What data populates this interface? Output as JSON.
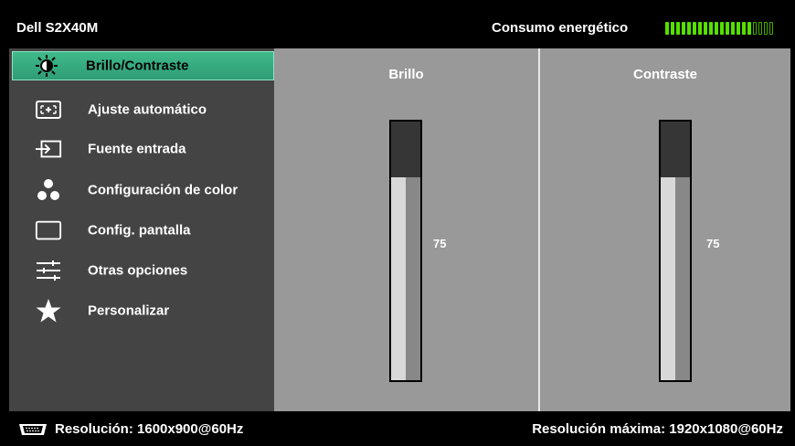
{
  "header": {
    "model": "Dell S2X40M",
    "energy_label": "Consumo energético",
    "energy_level": 0.8,
    "energy_segments_on": 16,
    "energy_segments_total": 20,
    "energy_color": "#55e000"
  },
  "menu": {
    "items": [
      {
        "label": "Brillo/Contraste",
        "icon": "brightness-icon",
        "active": true
      },
      {
        "label": "Ajuste  automático",
        "icon": "auto-adjust-icon"
      },
      {
        "label": "Fuente entrada",
        "icon": "input-source-icon"
      },
      {
        "label": "Configuración de color",
        "icon": "color-settings-icon"
      },
      {
        "label": "Config. pantalla",
        "icon": "display-settings-icon"
      },
      {
        "label": "Otras opciones",
        "icon": "other-settings-icon"
      },
      {
        "label": "Personalizar",
        "icon": "star-icon"
      }
    ],
    "active_color": "#3fb98a"
  },
  "brightness": {
    "title": "Brillo",
    "value": "75",
    "level": 0.75
  },
  "contrast": {
    "title": "Contraste",
    "value": "75",
    "level": 0.75
  },
  "footer": {
    "resolution": "Resolución: 1600x900@60Hz",
    "max_resolution": "Resolución máxima: 1920x1080@60Hz",
    "connector_icon": "vga-connector-icon"
  }
}
